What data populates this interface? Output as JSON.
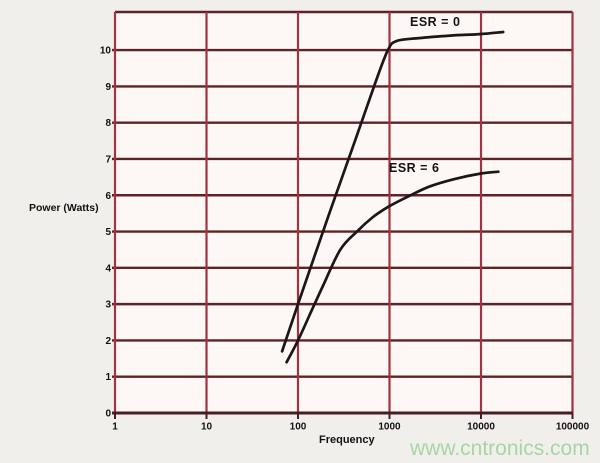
{
  "page": {
    "watermark": "www.cntronics.com"
  },
  "chart_data": {
    "type": "line",
    "title": "",
    "xlabel": "Frequency",
    "ylabel": "Power (Watts)",
    "x_scale": "log",
    "xlim": [
      1,
      100000
    ],
    "ylim": [
      0,
      11.05
    ],
    "x_ticks": [
      1,
      10,
      100,
      1000,
      10000,
      100000
    ],
    "x_tick_labels": [
      "1",
      "10",
      "100",
      "1000",
      "10000",
      "100000"
    ],
    "y_ticks": [
      0,
      1,
      2,
      3,
      4,
      5,
      6,
      7,
      8,
      9,
      10
    ],
    "y_tick_labels": [
      "0",
      "1",
      "2",
      "3",
      "4",
      "5",
      "6",
      "7",
      "8",
      "9",
      "10"
    ],
    "grid": true,
    "legend_position": "inline-annotations",
    "colors": {
      "grid_h": "#5f2128",
      "grid_v": "#a2313f",
      "axis": "#4a1a20",
      "curve": "#1b1416",
      "plot_bg": "#fdf8f6",
      "outer_bg": "#f1efec",
      "text": "#151013",
      "watermark": "#9fd49a"
    },
    "series": [
      {
        "name": "ESR = 0",
        "points": [
          [
            67,
            1.7
          ],
          [
            100,
            3.0
          ],
          [
            220,
            5.5
          ],
          [
            420,
            7.5
          ],
          [
            700,
            9.1
          ],
          [
            960,
            10.0
          ],
          [
            1200,
            10.25
          ],
          [
            2100,
            10.33
          ],
          [
            4600,
            10.4
          ],
          [
            9800,
            10.44
          ],
          [
            17500,
            10.5
          ]
        ]
      },
      {
        "name": "ESR = 6",
        "points": [
          [
            75,
            1.4
          ],
          [
            100,
            2.0
          ],
          [
            134,
            2.7
          ],
          [
            187,
            3.5
          ],
          [
            290,
            4.5
          ],
          [
            440,
            5.0
          ],
          [
            660,
            5.4
          ],
          [
            1000,
            5.7
          ],
          [
            1700,
            6.0
          ],
          [
            2800,
            6.25
          ],
          [
            5200,
            6.45
          ],
          [
            10000,
            6.6
          ],
          [
            15500,
            6.65
          ]
        ]
      }
    ]
  }
}
